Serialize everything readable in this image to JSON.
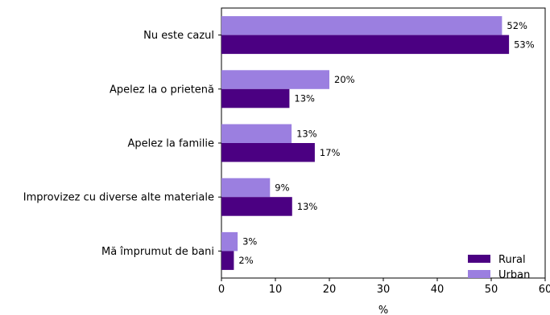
{
  "chart_data": {
    "type": "bar",
    "orientation": "horizontal",
    "categories": [
      "Nu este cazul",
      "Apelez la o prietenă",
      "Apelez la familie",
      "Improvizez cu diverse alte materiale",
      "Mă împrumut de bani"
    ],
    "series": [
      {
        "name": "Urban",
        "values": [
          52,
          20,
          13,
          9,
          3
        ],
        "labels": [
          "52%",
          "20%",
          "13%",
          "9%",
          "3%"
        ],
        "color": "#9b7fe0"
      },
      {
        "name": "Rural",
        "values": [
          53.3,
          12.6,
          17.3,
          13.1,
          2.3
        ],
        "labels": [
          "53%",
          "13%",
          "17%",
          "13%",
          "2%"
        ],
        "color": "#4b0082"
      }
    ],
    "xlabel": "%",
    "ylabel": "",
    "title": "",
    "xlim": [
      0,
      60
    ],
    "xticks": [
      "0",
      "10",
      "20",
      "30",
      "40",
      "50",
      "60"
    ],
    "grid": false,
    "legend": {
      "placement": "bottom-right",
      "entries": [
        "Rural",
        "Urban"
      ]
    }
  }
}
